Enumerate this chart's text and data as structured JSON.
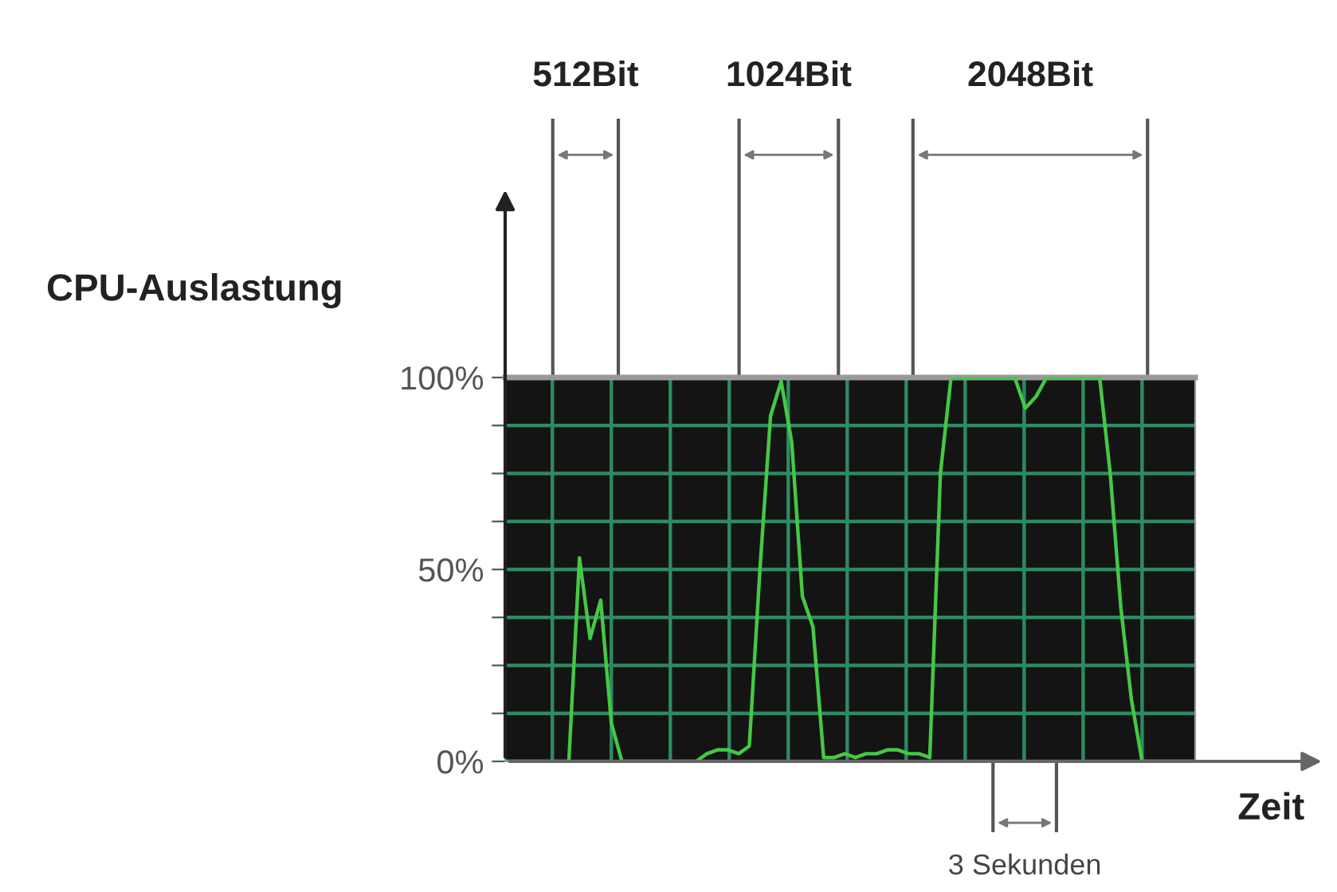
{
  "chart_data": {
    "type": "line",
    "xlabel": "Zeit",
    "ylabel": "CPU-Auslastung",
    "categories": [
      null,
      null,
      null,
      null,
      null,
      null,
      null,
      null,
      null,
      null,
      null,
      null,
      null,
      null,
      null,
      null,
      null,
      null,
      null,
      null,
      null,
      null,
      null,
      null,
      null,
      null,
      null,
      null,
      null,
      null,
      null,
      null,
      null,
      null,
      null,
      null,
      null,
      null,
      null,
      null,
      null,
      null,
      null,
      null,
      null,
      null,
      null,
      null,
      null,
      null,
      null,
      null,
      null,
      null,
      null,
      null,
      null,
      null,
      null,
      null,
      null,
      null,
      null,
      null,
      null,
      null
    ],
    "series": [
      {
        "color": "#45c845",
        "values": [
          0,
          0,
          0,
          0,
          0,
          0,
          0,
          53,
          32,
          42,
          10,
          0,
          0,
          0,
          0,
          0,
          0,
          0,
          0,
          2,
          3,
          3,
          2,
          4,
          50,
          90,
          99,
          83,
          43,
          35,
          1,
          1,
          2,
          1,
          2,
          2,
          3,
          3,
          2,
          2,
          1,
          75,
          100,
          100,
          100,
          100,
          100,
          100,
          100,
          92,
          95,
          100,
          100,
          100,
          100,
          100,
          100,
          75,
          40,
          16,
          0,
          0,
          0,
          0,
          0,
          0
        ]
      }
    ],
    "ylim": [
      0,
      100
    ],
    "yticks": [
      {
        "value": 0,
        "label": "0%"
      },
      {
        "value": 12.5,
        "label": null
      },
      {
        "value": 25,
        "label": null
      },
      {
        "value": 37.5,
        "label": null
      },
      {
        "value": 50,
        "label": "50%"
      },
      {
        "value": 62.5,
        "label": null
      },
      {
        "value": 75,
        "label": null
      },
      {
        "value": 87.5,
        "label": null
      },
      {
        "value": 100,
        "label": "100%"
      }
    ],
    "grid": true,
    "annotations": [
      "512Bit",
      "1024Bit",
      "2048Bit",
      "3 Sekunden"
    ]
  }
}
